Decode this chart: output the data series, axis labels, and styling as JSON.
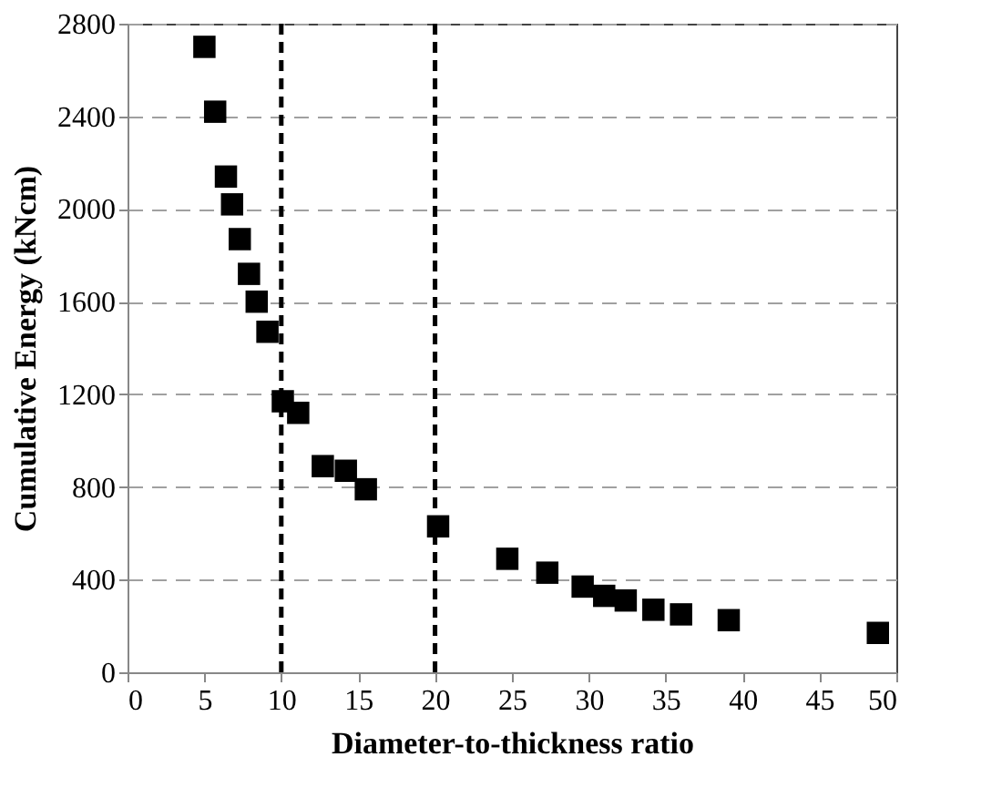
{
  "chart_data": {
    "type": "scatter",
    "xlabel": "Diameter-to-thickness ratio",
    "ylabel": "Cumulative Energy (kNcm)",
    "x": [
      5.0,
      5.7,
      6.4,
      6.8,
      7.3,
      7.9,
      8.4,
      9.1,
      10.1,
      11.1,
      12.7,
      14.2,
      15.5,
      20.2,
      24.7,
      27.3,
      29.6,
      31.0,
      32.4,
      34.2,
      36.0,
      39.1,
      48.8
    ],
    "series": [
      {
        "color": "#000000",
        "values": [
          2700,
          2420,
          2140,
          2020,
          1870,
          1720,
          1600,
          1470,
          1170,
          1120,
          890,
          870,
          790,
          630,
          490,
          430,
          370,
          330,
          310,
          270,
          250,
          225,
          170
        ]
      }
    ],
    "xlim": [
      0,
      50
    ],
    "xticks": [
      0,
      5,
      10,
      15,
      20,
      25,
      30,
      35,
      40,
      45,
      50
    ],
    "ylim": [
      0,
      2800
    ],
    "yticks": [
      0,
      400,
      800,
      1200,
      1600,
      2000,
      2400,
      2800
    ],
    "grid": "y",
    "marker": "square",
    "ref_lines": [
      {
        "axis": "x",
        "value": 10,
        "color": "#000000",
        "line_style": "dashed"
      },
      {
        "axis": "x",
        "value": 20,
        "color": "#000000",
        "line_style": "dashed"
      }
    ]
  }
}
